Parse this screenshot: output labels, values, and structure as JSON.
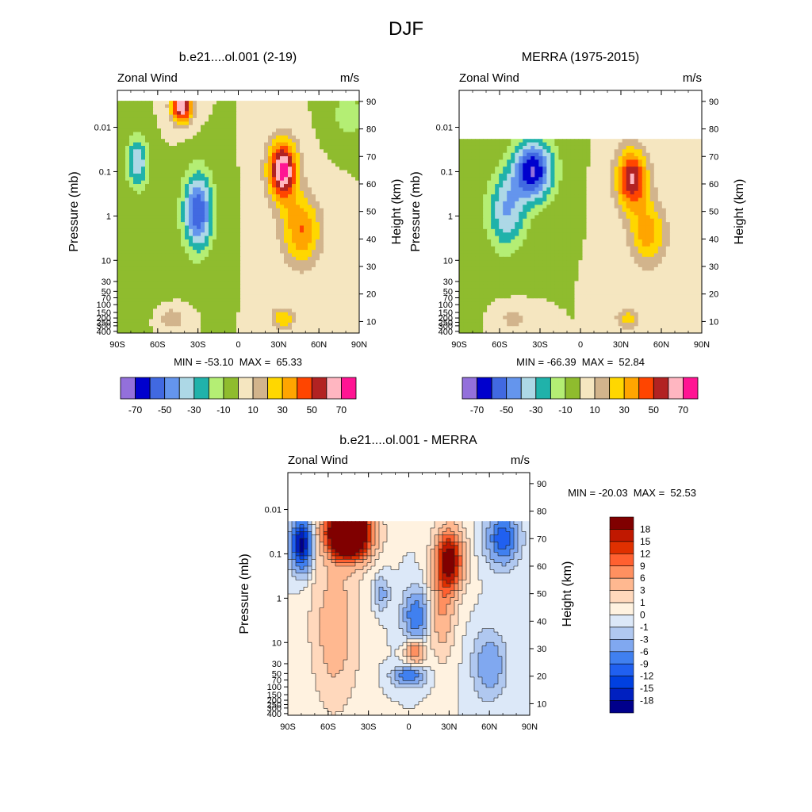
{
  "figure_title": "DJF",
  "colors": {
    "full_field": [
      "#9370DB",
      "#0000CD",
      "#4169E1",
      "#6495ED",
      "#ADD8E6",
      "#20B2AA",
      "#B4EE74",
      "#8FBC2E",
      "#F5E6C0",
      "#D2B48C",
      "#FFD700",
      "#FFA500",
      "#FF4500",
      "#B22222",
      "#FFB6C1",
      "#FF1493"
    ],
    "difference": [
      "#00008B",
      "#0020C0",
      "#0040E0",
      "#2060F0",
      "#4080F0",
      "#80A8F0",
      "#B0C8F0",
      "#DCE8F8",
      "#FFF2E0",
      "#FFD8BC",
      "#FFB890",
      "#FF9060",
      "#FF6030",
      "#E03000",
      "#C01800",
      "#800000"
    ]
  },
  "chart_data": [
    {
      "type": "heatmap",
      "id": "model",
      "title": "b.e21....ol.001 (2-19)",
      "left_label": "Zonal Wind",
      "right_label": "m/s",
      "xlabel": "",
      "ylabel": "Pressure (mb)",
      "ylabel_right": "Height (km)",
      "x_ticks": [
        "90S",
        "60S",
        "30S",
        "0",
        "30N",
        "60N",
        "90N"
      ],
      "pressure_ticks": [
        "400",
        "300",
        "250",
        "200",
        "150",
        "100",
        "70",
        "50",
        "30",
        "10",
        "1",
        "0.1",
        "0.01"
      ],
      "height_ticks": [
        "10",
        "20",
        "30",
        "40",
        "50",
        "60",
        "70",
        "80",
        "90"
      ],
      "stats": "MIN = -53.10  MAX =  65.33",
      "min": -53.1,
      "max": 65.33,
      "colorbar_labels": [
        "-70",
        "-50",
        "-30",
        "-10",
        "10",
        "30",
        "50",
        "70"
      ],
      "levels": [
        -70,
        -60,
        -50,
        -40,
        -30,
        -20,
        -10,
        0,
        10,
        20,
        30,
        40,
        50,
        60,
        70
      ],
      "data_top_km": 90,
      "features": [
        {
          "lat": -42,
          "z": 88,
          "amp": 70,
          "slat": 8,
          "sz": 6
        },
        {
          "lat": -75,
          "z": 68,
          "amp": -40,
          "slat": 8,
          "sz": 9
        },
        {
          "lat": -30,
          "z": 50,
          "amp": -60,
          "slat": 11,
          "sz": 14
        },
        {
          "lat": 33,
          "z": 65,
          "amp": 75,
          "slat": 11,
          "sz": 11
        },
        {
          "lat": 47,
          "z": 43,
          "amp": 40,
          "slat": 15,
          "sz": 13
        },
        {
          "lat": 33,
          "z": 11,
          "amp": 30,
          "slat": 9,
          "sz": 4
        },
        {
          "lat": -50,
          "z": 11,
          "amp": 20,
          "slat": 9,
          "sz": 4
        },
        {
          "lat": 82,
          "z": 85,
          "amp": -18,
          "slat": 12,
          "sz": 8
        },
        {
          "lat": -70,
          "z": 35,
          "amp": -8,
          "slat": 20,
          "sz": 18
        }
      ]
    },
    {
      "type": "heatmap",
      "id": "obs",
      "title": "MERRA (1975-2015)",
      "left_label": "Zonal Wind",
      "right_label": "m/s",
      "xlabel": "",
      "ylabel": "Pressure (mb)",
      "ylabel_right": "Height (km)",
      "x_ticks": [
        "90S",
        "60S",
        "30S",
        "0",
        "30N",
        "60N",
        "90N"
      ],
      "pressure_ticks": [
        "400",
        "300",
        "250",
        "200",
        "150",
        "100",
        "70",
        "50",
        "30",
        "10",
        "1",
        "0.1",
        "0.01"
      ],
      "height_ticks": [
        "10",
        "20",
        "30",
        "40",
        "50",
        "60",
        "70",
        "80",
        "90"
      ],
      "stats": "MIN = -66.39  MAX =  52.84",
      "min": -66.39,
      "max": 52.84,
      "colorbar_labels": [
        "-70",
        "-50",
        "-30",
        "-10",
        "10",
        "30",
        "50",
        "70"
      ],
      "levels": [
        -70,
        -60,
        -50,
        -40,
        -30,
        -20,
        -10,
        0,
        10,
        20,
        30,
        40,
        50,
        60,
        70
      ],
      "data_top_km": 76,
      "features": [
        {
          "lat": -35,
          "z": 65,
          "amp": -70,
          "slat": 15,
          "sz": 11
        },
        {
          "lat": -55,
          "z": 50,
          "amp": -40,
          "slat": 14,
          "sz": 14
        },
        {
          "lat": 38,
          "z": 62,
          "amp": 60,
          "slat": 12,
          "sz": 11
        },
        {
          "lat": 50,
          "z": 42,
          "amp": 35,
          "slat": 14,
          "sz": 12
        },
        {
          "lat": 35,
          "z": 11,
          "amp": 25,
          "slat": 9,
          "sz": 4
        },
        {
          "lat": -50,
          "z": 11,
          "amp": 15,
          "slat": 10,
          "sz": 4
        },
        {
          "lat": -85,
          "z": 40,
          "amp": -5,
          "slat": 10,
          "sz": 20
        }
      ]
    },
    {
      "type": "heatmap",
      "id": "diff",
      "title": "b.e21....ol.001 - MERRA",
      "left_label": "Zonal Wind",
      "right_label": "m/s",
      "xlabel": "",
      "ylabel": "Pressure (mb)",
      "ylabel_right": "Height (km)",
      "x_ticks": [
        "90S",
        "60S",
        "30S",
        "0",
        "30N",
        "60N",
        "90N"
      ],
      "pressure_ticks": [
        "400",
        "300",
        "250",
        "200",
        "150",
        "100",
        "70",
        "50",
        "30",
        "10",
        "1",
        "0.1",
        "0.01"
      ],
      "height_ticks": [
        "10",
        "20",
        "30",
        "40",
        "50",
        "60",
        "70",
        "80",
        "90"
      ],
      "stats": "MIN = -20.03  MAX =  52.53",
      "min": -20.03,
      "max": 52.53,
      "colorbar_labels": [
        "18",
        "15",
        "12",
        "9",
        "6",
        "3",
        "1",
        "0",
        "-1",
        "-3",
        "-6",
        "-9",
        "-12",
        "-15",
        "-18"
      ],
      "levels": [
        -18,
        -15,
        -12,
        -9,
        -6,
        -3,
        -1,
        0,
        1,
        3,
        6,
        9,
        12,
        15,
        18
      ],
      "data_top_km": 76,
      "features": [
        {
          "lat": -45,
          "z": 72,
          "amp": 50,
          "slat": 14,
          "sz": 8
        },
        {
          "lat": -80,
          "z": 68,
          "amp": -20,
          "slat": 7,
          "sz": 8
        },
        {
          "lat": 30,
          "z": 62,
          "amp": 22,
          "slat": 9,
          "sz": 10
        },
        {
          "lat": 70,
          "z": 70,
          "amp": -12,
          "slat": 10,
          "sz": 8
        },
        {
          "lat": 5,
          "z": 42,
          "amp": -9,
          "slat": 8,
          "sz": 8
        },
        {
          "lat": -20,
          "z": 50,
          "amp": -4,
          "slat": 5,
          "sz": 5
        },
        {
          "lat": 5,
          "z": 29,
          "amp": 9,
          "slat": 6,
          "sz": 4
        },
        {
          "lat": 0,
          "z": 20,
          "amp": -9,
          "slat": 10,
          "sz": 3
        },
        {
          "lat": 60,
          "z": 24,
          "amp": -6,
          "slat": 10,
          "sz": 10
        },
        {
          "lat": -55,
          "z": 38,
          "amp": 5,
          "slat": 15,
          "sz": 25
        },
        {
          "lat": 25,
          "z": 45,
          "amp": 6,
          "slat": 8,
          "sz": 15
        }
      ]
    }
  ]
}
